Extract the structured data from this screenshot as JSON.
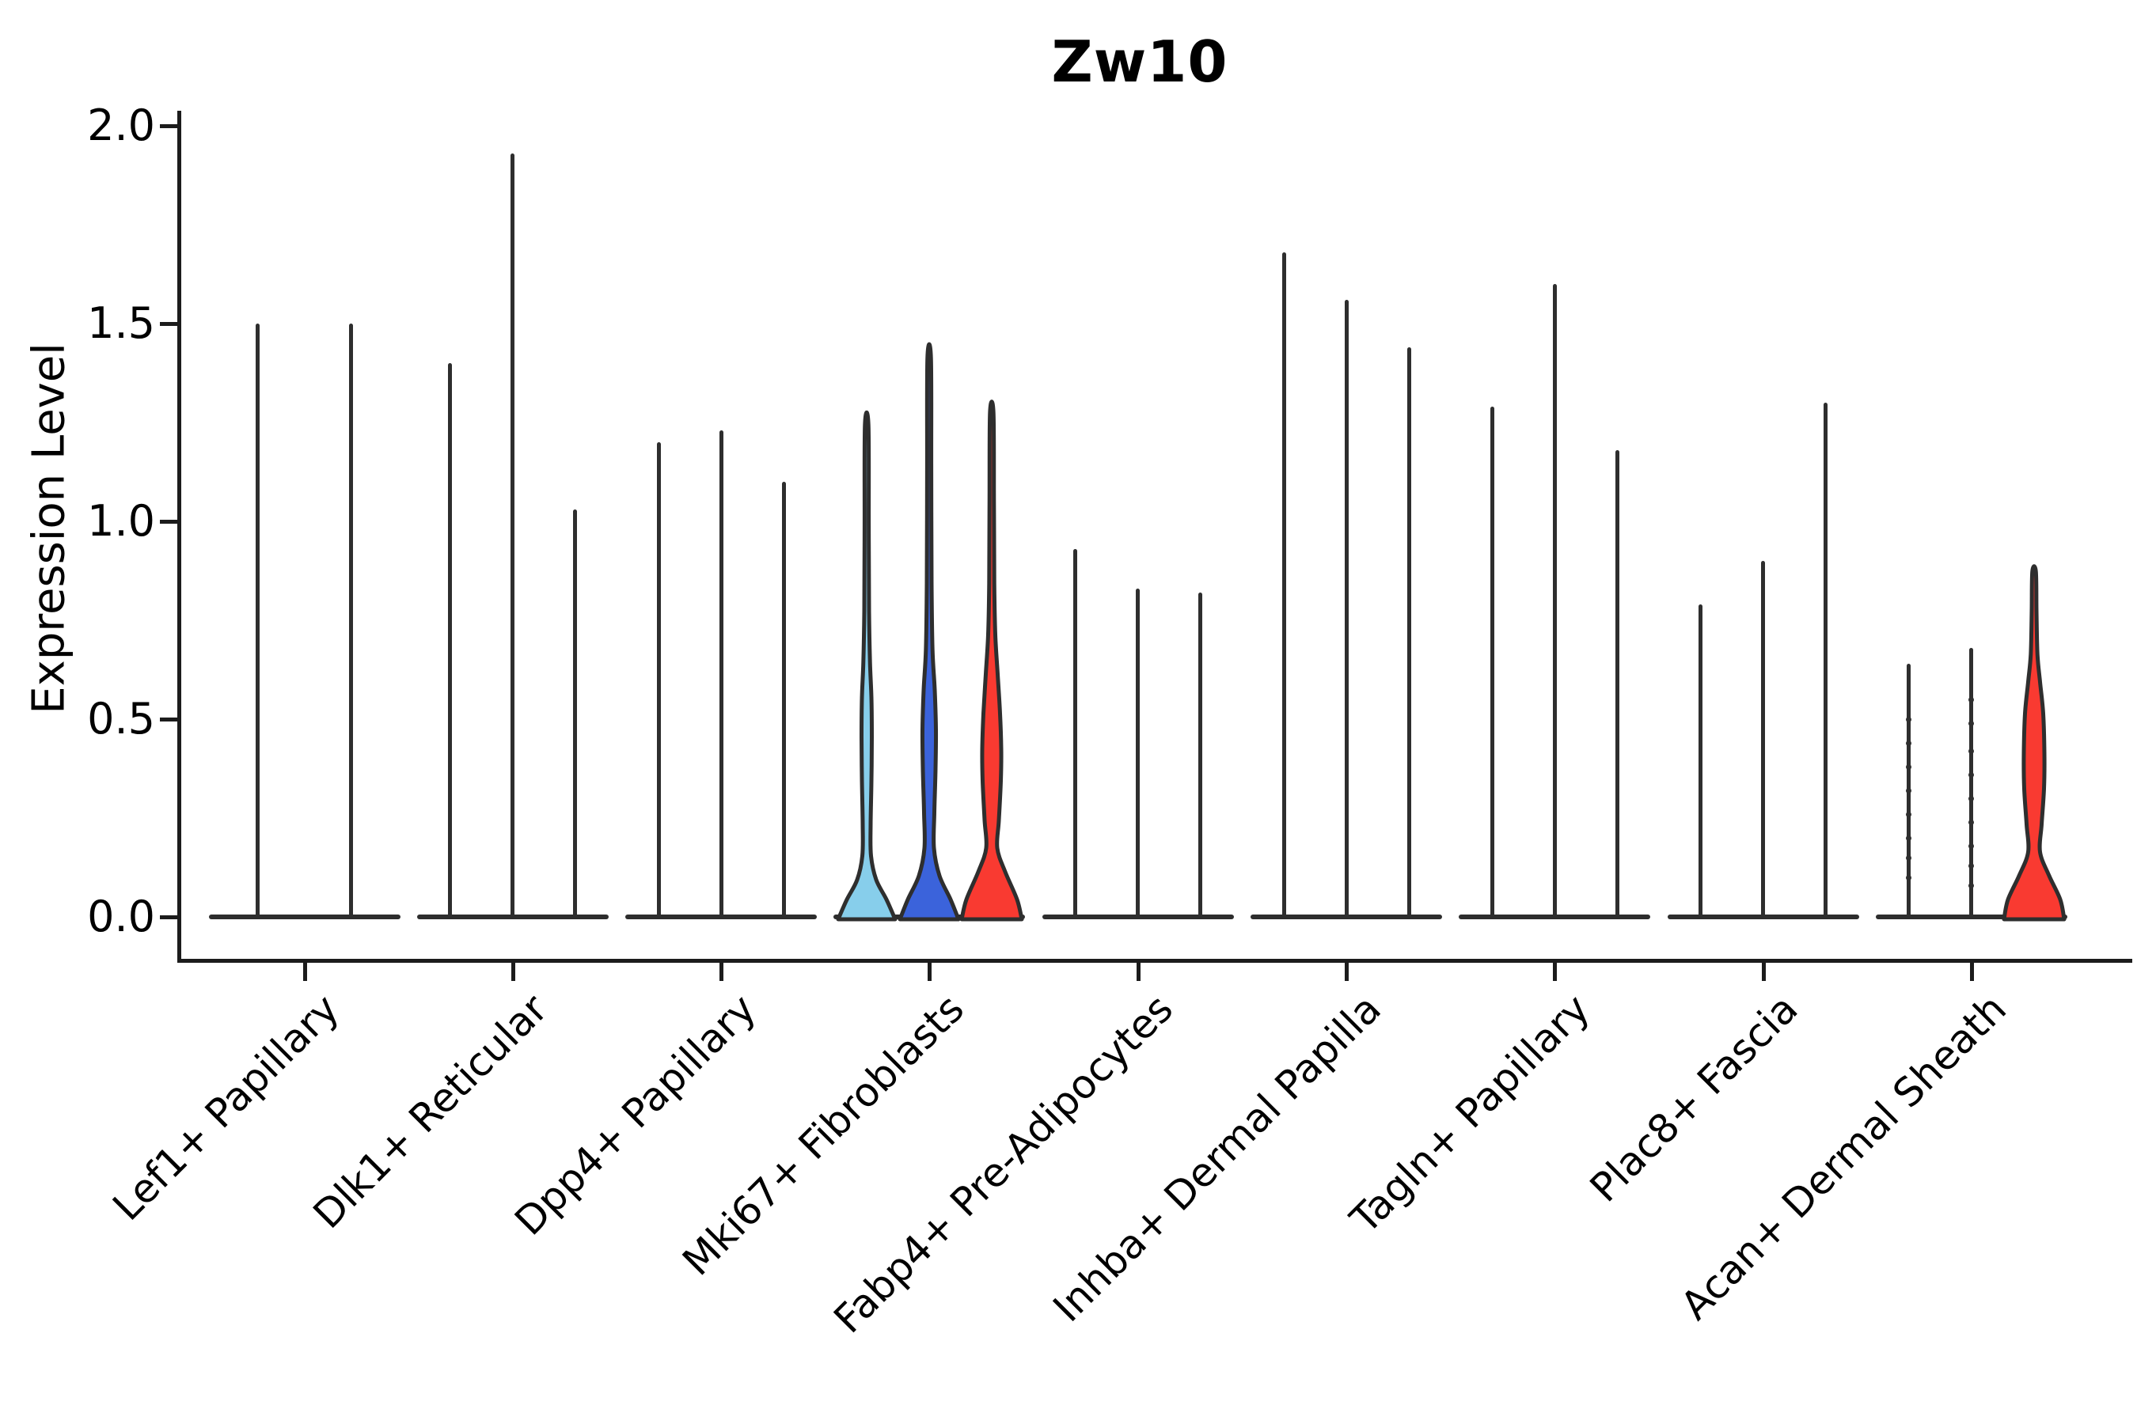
{
  "title": "Zw10",
  "y_axis": {
    "label": "Expression Level",
    "tick_labels": [
      "0.0",
      "0.5",
      "1.0",
      "1.5",
      "2.0"
    ],
    "tick_values": [
      0.0,
      0.5,
      1.0,
      1.5,
      2.0
    ]
  },
  "colors": {
    "background": "#ffffff",
    "axis": "#1c1c1c",
    "violin_outline": "#2e2e2e",
    "text": "#000000",
    "skyblue": "#87CEEB",
    "blue": "#3B63DB",
    "red": "#F93A31"
  },
  "chart_data": {
    "type": "violin",
    "title": "Zw10",
    "xlabel": "",
    "ylabel": "Expression Level",
    "ylim": [
      0,
      2
    ],
    "yticks": [
      0.0,
      0.5,
      1.0,
      1.5,
      2.0
    ],
    "grid": false,
    "legend": "none",
    "categories": [
      "Lef1+ Papillary",
      "Dlk1+ Reticular",
      "Dpp4+ Papillary",
      "Mki67+ Fibroblasts",
      "Fabp4+ Pre-Adipocytes",
      "Inhba+ Dermal Papilla",
      "Tagln+ Papillary",
      "Plac8+ Fascia",
      "Acan+ Dermal Sheath"
    ],
    "groups": [
      {
        "category": "Lef1+ Papillary",
        "violins": [
          {
            "max": 1.5,
            "fill": "none"
          },
          {
            "max": 1.5,
            "fill": "none"
          }
        ]
      },
      {
        "category": "Dlk1+ Reticular",
        "violins": [
          {
            "max": 1.4,
            "fill": "none"
          },
          {
            "max": 1.93,
            "fill": "none"
          },
          {
            "max": 1.03,
            "fill": "none"
          }
        ]
      },
      {
        "category": "Dpp4+ Papillary",
        "violins": [
          {
            "max": 1.2,
            "fill": "none"
          },
          {
            "max": 1.23,
            "fill": "none"
          },
          {
            "max": 1.1,
            "fill": "none"
          }
        ]
      },
      {
        "category": "Mki67+ Fibroblasts",
        "violins": [
          {
            "max": 1.25,
            "fill": "skyblue",
            "profile": [
              [
                0,
                36
              ],
              [
                0.05,
                25
              ],
              [
                0.1,
                12
              ],
              [
                0.16,
                5.5
              ],
              [
                0.24,
                5
              ],
              [
                0.35,
                6
              ],
              [
                0.46,
                6.5
              ],
              [
                0.56,
                6
              ],
              [
                0.65,
                4.2
              ],
              [
                0.78,
                3
              ],
              [
                1.0,
                2.6
              ],
              [
                1.25,
                2.2
              ]
            ]
          },
          {
            "max": 1.42,
            "fill": "blue",
            "profile": [
              [
                0,
                37
              ],
              [
                0.05,
                27
              ],
              [
                0.11,
                13
              ],
              [
                0.18,
                6
              ],
              [
                0.27,
                6.5
              ],
              [
                0.38,
                8
              ],
              [
                0.48,
                8.5
              ],
              [
                0.58,
                7
              ],
              [
                0.68,
                4.2
              ],
              [
                0.85,
                3
              ],
              [
                1.15,
                2.6
              ],
              [
                1.42,
                2.2
              ]
            ]
          },
          {
            "max": 1.28,
            "fill": "red",
            "profile": [
              [
                0,
                38
              ],
              [
                0.05,
                32
              ],
              [
                0.12,
                17
              ],
              [
                0.18,
                7
              ],
              [
                0.25,
                9
              ],
              [
                0.35,
                11.5
              ],
              [
                0.43,
                12
              ],
              [
                0.52,
                10.5
              ],
              [
                0.62,
                7.5
              ],
              [
                0.72,
                4.5
              ],
              [
                0.85,
                3.2
              ],
              [
                1.05,
                2.8
              ],
              [
                1.28,
                2.2
              ]
            ]
          }
        ]
      },
      {
        "category": "Fabp4+ Pre-Adipocytes",
        "violins": [
          {
            "max": 0.93,
            "fill": "none"
          },
          {
            "max": 0.83,
            "fill": "none"
          },
          {
            "max": 0.82,
            "fill": "none"
          }
        ]
      },
      {
        "category": "Inhba+ Dermal Papilla",
        "violins": [
          {
            "max": 1.68,
            "fill": "none"
          },
          {
            "max": 1.56,
            "fill": "none"
          },
          {
            "max": 1.44,
            "fill": "none"
          }
        ]
      },
      {
        "category": "Tagln+ Papillary",
        "violins": [
          {
            "max": 1.29,
            "fill": "none"
          },
          {
            "max": 1.6,
            "fill": "none"
          },
          {
            "max": 1.18,
            "fill": "none"
          }
        ]
      },
      {
        "category": "Plac8+ Fascia",
        "violins": [
          {
            "max": 0.79,
            "fill": "none"
          },
          {
            "max": 0.9,
            "fill": "none"
          },
          {
            "max": 1.3,
            "fill": "none"
          }
        ]
      },
      {
        "category": "Acan+ Dermal Sheath",
        "violins": [
          {
            "max": 0.64,
            "fill": "none",
            "points": [
              0.1,
              0.15,
              0.2,
              0.26,
              0.32,
              0.38,
              0.44,
              0.5
            ]
          },
          {
            "max": 0.68,
            "fill": "none",
            "points": [
              0.08,
              0.13,
              0.18,
              0.24,
              0.3,
              0.36,
              0.42,
              0.49,
              0.55
            ]
          },
          {
            "max": 0.88,
            "fill": "red",
            "profile": [
              [
                0,
                38
              ],
              [
                0.05,
                33
              ],
              [
                0.11,
                19
              ],
              [
                0.17,
                7.5
              ],
              [
                0.24,
                9.5
              ],
              [
                0.33,
                12.5
              ],
              [
                0.42,
                13
              ],
              [
                0.52,
                11.5
              ],
              [
                0.6,
                7.5
              ],
              [
                0.67,
                4.2
              ],
              [
                0.78,
                3
              ],
              [
                0.88,
                2.2
              ]
            ]
          }
        ]
      }
    ]
  }
}
